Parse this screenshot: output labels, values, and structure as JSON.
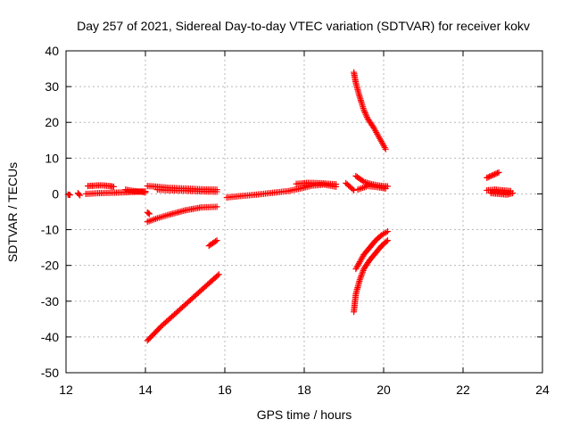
{
  "chart_data": {
    "type": "scatter",
    "title": "Day 257 of 2021, Sidereal Day-to-day VTEC variation (SDTVAR) for receiver kokv",
    "xlabel": "GPS time / hours",
    "ylabel": "SDTVAR / TECUs",
    "xlim": [
      12,
      24
    ],
    "ylim": [
      -50,
      40
    ],
    "xticks": [
      "12",
      "14",
      "16",
      "18",
      "20",
      "22",
      "24"
    ],
    "yticks": [
      "40",
      "30",
      "20",
      "10",
      "0",
      "-10",
      "-20",
      "-30",
      "-40",
      "-50"
    ],
    "grid": true,
    "legend": "none",
    "marker": "plus",
    "series_color": "#ff0000",
    "segments": [
      {
        "x": [
          12.05,
          12.1
        ],
        "y": [
          -0.2,
          -0.3
        ]
      },
      {
        "x": [
          12.3,
          12.35
        ],
        "y": [
          0.2,
          -0.4
        ]
      },
      {
        "x": [
          12.5,
          12.8,
          13.1,
          13.4,
          13.6,
          13.8,
          14.0
        ],
        "y": [
          0.0,
          0.2,
          0.3,
          0.4,
          0.5,
          0.6,
          0.7
        ]
      },
      {
        "x": [
          12.55,
          12.7,
          12.9,
          13.1,
          13.2
        ],
        "y": [
          2.2,
          2.3,
          2.4,
          2.2,
          2.0
        ]
      },
      {
        "x": [
          13.5,
          13.7,
          13.9,
          14.0
        ],
        "y": [
          1.2,
          0.8,
          0.6,
          0.4
        ]
      },
      {
        "x": [
          14.05,
          14.3,
          14.6,
          15.0,
          15.4,
          15.8
        ],
        "y": [
          2.2,
          2.0,
          1.7,
          1.5,
          1.3,
          1.2
        ]
      },
      {
        "x": [
          14.3,
          14.6,
          15.0,
          15.4,
          15.8
        ],
        "y": [
          1.2,
          1.0,
          0.9,
          0.7,
          0.6
        ]
      },
      {
        "x": [
          14.05,
          14.1
        ],
        "y": [
          -5.2,
          -5.6
        ]
      },
      {
        "x": [
          14.05,
          14.3,
          14.6,
          15.0,
          15.4,
          15.8
        ],
        "y": [
          -7.8,
          -6.8,
          -5.8,
          -4.6,
          -3.8,
          -3.6
        ]
      },
      {
        "x": [
          15.6,
          15.8
        ],
        "y": [
          -14.5,
          -13.0
        ]
      },
      {
        "x": [
          14.05,
          14.4,
          14.8,
          15.2,
          15.6,
          15.85
        ],
        "y": [
          -41.0,
          -37.0,
          -33.0,
          -29.0,
          -25.0,
          -22.5
        ]
      },
      {
        "x": [
          16.05,
          16.4,
          16.8,
          17.2,
          17.6,
          17.9,
          18.2,
          18.5,
          18.8
        ],
        "y": [
          -1.0,
          -0.6,
          -0.2,
          0.3,
          0.8,
          1.5,
          2.3,
          2.6,
          2.0
        ]
      },
      {
        "x": [
          17.8,
          18.1,
          18.4,
          18.8
        ],
        "y": [
          2.8,
          3.1,
          3.0,
          2.7
        ]
      },
      {
        "x": [
          19.05,
          19.15,
          19.25
        ],
        "y": [
          3.0,
          2.0,
          1.0
        ]
      },
      {
        "x": [
          19.3,
          19.4,
          19.5,
          19.7,
          19.9,
          20.1
        ],
        "y": [
          5.0,
          4.2,
          3.4,
          2.7,
          2.3,
          2.1
        ]
      },
      {
        "x": [
          19.35,
          19.6,
          19.9,
          20.05
        ],
        "y": [
          1.2,
          2.2,
          1.8,
          1.5
        ]
      },
      {
        "x": [
          19.25,
          19.3,
          19.4,
          19.5,
          19.6,
          19.75,
          19.9,
          20.05
        ],
        "y": [
          34.0,
          31.0,
          27.0,
          23.5,
          21.0,
          18.5,
          15.5,
          12.5
        ]
      },
      {
        "x": [
          19.3,
          19.4,
          19.5,
          19.65,
          19.8,
          19.95,
          20.1
        ],
        "y": [
          -21.0,
          -19.0,
          -17.0,
          -15.0,
          -13.0,
          -11.5,
          -10.5
        ]
      },
      {
        "x": [
          19.25,
          19.3,
          19.4,
          19.5,
          19.65,
          19.8,
          19.95,
          20.1
        ],
        "y": [
          -33.0,
          -28.0,
          -24.0,
          -21.0,
          -18.5,
          -16.5,
          -14.5,
          -13.0
        ]
      },
      {
        "x": [
          22.6,
          22.7,
          22.8,
          22.9
        ],
        "y": [
          4.5,
          5.0,
          5.5,
          6.0
        ]
      },
      {
        "x": [
          22.6,
          22.8,
          23.0,
          23.2
        ],
        "y": [
          1.0,
          1.2,
          1.0,
          0.8
        ]
      },
      {
        "x": [
          22.7,
          22.9,
          23.1,
          23.25
        ],
        "y": [
          0.2,
          0.0,
          -0.2,
          0.2
        ]
      }
    ]
  }
}
